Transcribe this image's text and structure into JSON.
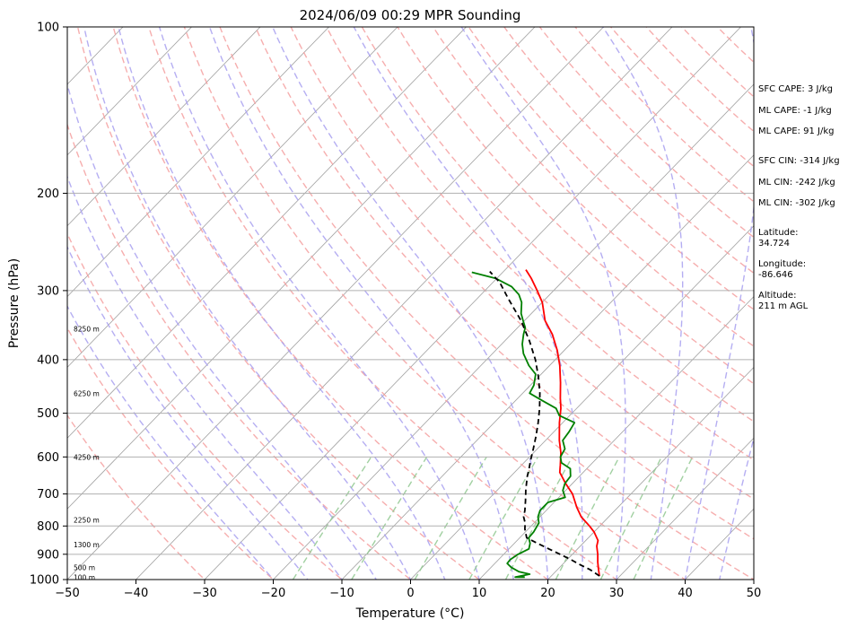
{
  "chart_data": {
    "type": "line",
    "title": "2024/06/09 00:29 MPR Sounding",
    "xlabel": "Temperature (°C)",
    "ylabel": "Pressure (hPa)",
    "xlim": [
      -50,
      50
    ],
    "ylim": [
      1000,
      100
    ],
    "y_scale": "log",
    "x_ticks": [
      "−50",
      "−40",
      "−30",
      "−20",
      "−10",
      "0",
      "10",
      "20",
      "30",
      "40",
      "50"
    ],
    "y_ticks": [
      "100",
      "200",
      "300",
      "400",
      "500",
      "600",
      "700",
      "800",
      "900",
      "1000"
    ],
    "grid": true,
    "background_lines": [
      "skewed isotherms",
      "dry adiabats",
      "moist adiabats",
      "mixing ratio lines"
    ],
    "colors": {
      "temperature": "#ff0000",
      "dewpoint": "#008000",
      "parcel": "#000000",
      "dry_adiabat": "#f5a0a0",
      "moist_adiabat": "#a8a0f0",
      "mixing_ratio": "#90c890",
      "isotherm": "#a0a0a0"
    },
    "series": [
      {
        "key": "temperature",
        "points": [
          [
            27,
            985
          ],
          [
            26,
            960
          ],
          [
            24.8,
            930
          ],
          [
            23.7,
            900
          ],
          [
            22.4,
            870
          ],
          [
            21.8,
            850
          ],
          [
            20,
            820
          ],
          [
            18.5,
            800
          ],
          [
            16,
            770
          ],
          [
            14,
            740
          ],
          [
            11.5,
            700
          ],
          [
            9,
            670
          ],
          [
            6.6,
            640
          ],
          [
            5.6,
            620
          ],
          [
            4,
            590
          ],
          [
            2,
            560
          ],
          [
            -0.5,
            520
          ],
          [
            -2.3,
            490
          ],
          [
            -3.8,
            470
          ],
          [
            -6,
            440
          ],
          [
            -8.5,
            410
          ],
          [
            -11,
            385
          ],
          [
            -14,
            360
          ],
          [
            -17,
            340
          ],
          [
            -20,
            315
          ],
          [
            -22.4,
            300
          ],
          [
            -25,
            285
          ],
          [
            -27,
            275
          ]
        ]
      },
      {
        "key": "dewpoint",
        "points": [
          [
            16.3,
            990
          ],
          [
            14.9,
            990
          ],
          [
            16.6,
            978
          ],
          [
            14.7,
            968
          ],
          [
            12.9,
            950
          ],
          [
            11.8,
            935
          ],
          [
            11.7,
            920
          ],
          [
            12.1,
            900
          ],
          [
            12.9,
            880
          ],
          [
            12.3,
            860
          ],
          [
            11.3,
            840
          ],
          [
            11.2,
            820
          ],
          [
            10.7,
            790
          ],
          [
            9.7,
            770
          ],
          [
            9.1,
            750
          ],
          [
            9.1,
            725
          ],
          [
            10.9,
            710
          ],
          [
            9.6,
            690
          ],
          [
            8.9,
            670
          ],
          [
            8.7,
            650
          ],
          [
            7.6,
            630
          ],
          [
            5.5,
            615
          ],
          [
            4.5,
            600
          ],
          [
            4,
            580
          ],
          [
            2.5,
            560
          ],
          [
            2.2,
            540
          ],
          [
            1.7,
            520
          ],
          [
            -1.5,
            505
          ],
          [
            -3,
            490
          ],
          [
            -6,
            475
          ],
          [
            -9,
            460
          ],
          [
            -9.5,
            445
          ],
          [
            -10.8,
            425
          ],
          [
            -13,
            410
          ],
          [
            -15.5,
            390
          ],
          [
            -17,
            375
          ],
          [
            -18.2,
            360
          ],
          [
            -18.9,
            350
          ],
          [
            -20.2,
            340
          ],
          [
            -21.5,
            330
          ],
          [
            -23,
            315
          ],
          [
            -24.5,
            305
          ],
          [
            -26.7,
            295
          ],
          [
            -30.2,
            285
          ],
          [
            -34.5,
            278
          ]
        ]
      },
      {
        "key": "parcel",
        "points": [
          [
            27,
            985
          ],
          [
            24.8,
            960
          ],
          [
            22.6,
            940
          ],
          [
            20.5,
            920
          ],
          [
            18.2,
            900
          ],
          [
            15.8,
            880
          ],
          [
            13.4,
            860
          ],
          [
            11,
            840
          ],
          [
            9.5,
            810
          ],
          [
            8.7,
            790
          ],
          [
            7.6,
            770
          ],
          [
            6.9,
            750
          ],
          [
            5.6,
            720
          ],
          [
            4.2,
            690
          ],
          [
            3.3,
            670
          ],
          [
            2.4,
            650
          ],
          [
            1.6,
            630
          ],
          [
            0.7,
            610
          ],
          [
            -0.6,
            580
          ],
          [
            -2,
            550
          ],
          [
            -3.6,
            520
          ],
          [
            -5.4,
            490
          ],
          [
            -7.5,
            460
          ],
          [
            -10,
            430
          ],
          [
            -12.9,
            400
          ],
          [
            -16.4,
            370
          ],
          [
            -20.5,
            340
          ],
          [
            -25.5,
            310
          ],
          [
            -29,
            290
          ],
          [
            -32,
            277
          ]
        ]
      }
    ],
    "height_labels": [
      "8250 m",
      "6250 m",
      "4250 m",
      "2250 m",
      "1300 m",
      "500 m",
      "100 m"
    ],
    "height_label_pressures": [
      352,
      460,
      600,
      780,
      865,
      950,
      990
    ]
  },
  "stats": {
    "sfc_cape": "SFC CAPE: 3 J/kg",
    "ml_cape": "ML CAPE: -1 J/kg",
    "mu_cape": "ML CAPE: 91 J/kg",
    "sfc_cin": "SFC CIN: -314 J/kg",
    "ml_cin": "ML CIN: -242 J/kg",
    "mu_cin": "ML CIN: -302 J/kg",
    "latitude_label": "Latitude:",
    "latitude": "34.724",
    "longitude_label": "Longitude:",
    "longitude": "-86.646",
    "altitude_label": "Altitude:",
    "altitude": "211 m AGL"
  }
}
